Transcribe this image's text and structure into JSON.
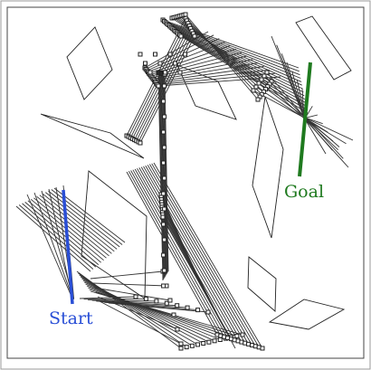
{
  "labels": {
    "start": "Start",
    "goal": "Goal"
  },
  "colors": {
    "start": "#2a4fd6",
    "goal": "#1f7a1f",
    "obstacle": "#222222",
    "link": "#333333",
    "joint_fill": "#ffffff",
    "frame": "#444444",
    "background": "#ffffff"
  }
}
